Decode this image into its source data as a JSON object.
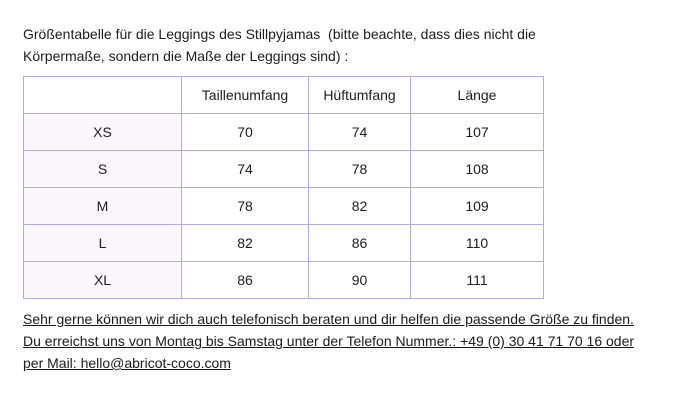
{
  "intro": {
    "line1": "Größentabelle für die Leggings des Stillpyjamas  (bitte beachte, dass dies nicht die",
    "line2": "Körpermaße, sondern die Maße der Leggings sind) :"
  },
  "table": {
    "headers": [
      "",
      "Taillenumfang",
      "Hüftumfang",
      "Länge"
    ],
    "rows": [
      {
        "size": "XS",
        "waist": "70",
        "hip": "74",
        "length": "107"
      },
      {
        "size": "S",
        "waist": "74",
        "hip": "78",
        "length": "108"
      },
      {
        "size": "M",
        "waist": "78",
        "hip": "82",
        "length": "109"
      },
      {
        "size": "L",
        "waist": "82",
        "hip": "86",
        "length": "110"
      },
      {
        "size": "XL",
        "waist": "86",
        "hip": "90",
        "length": "111"
      }
    ]
  },
  "contact": {
    "line1": "Sehr gerne können wir dich auch telefonisch beraten und dir helfen die passende Größe zu finden.",
    "line2": "Du erreichst uns von Montag bis Samstag unter der Telefon Nummer.: +49 (0) 30 41 71 70 16 oder",
    "line3": "per Mail: hello@abricot-coco.com",
    "phone": "+49 (0) 30 41 71 70 16",
    "email": "hello@abricot-coco.com"
  },
  "colors": {
    "table_border": "#b2ace2",
    "size_column_bg": "#faf6fb",
    "text": "#1d1d1d"
  }
}
